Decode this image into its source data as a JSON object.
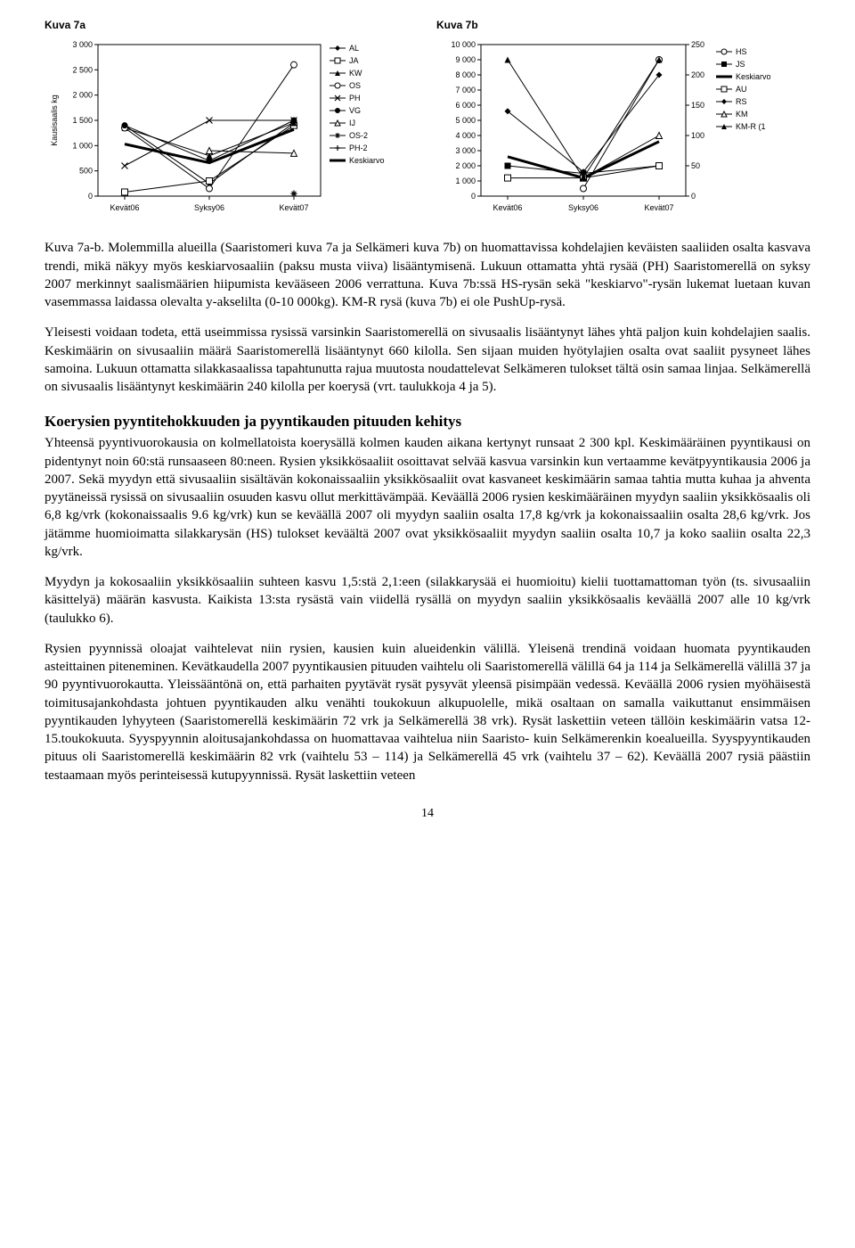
{
  "chart_a": {
    "title": "Kuva 7a",
    "type": "line",
    "x_categories": [
      "Kevät06",
      "Syksy06",
      "Kevät07"
    ],
    "ylabel": "Kausisaalis kg",
    "ylim": [
      0,
      3000
    ],
    "ytick_step": 500,
    "ytick_labels": [
      "0",
      "500",
      "1 000",
      "1 500",
      "2 000",
      "2 500",
      "3 000"
    ],
    "label_fontsize": 9,
    "background_color": "#ffffff",
    "axis_color": "#000000",
    "series": [
      {
        "name": "AL",
        "color": "#000000",
        "marker": "diamond-filled",
        "values": [
          1400,
          250,
          1450
        ]
      },
      {
        "name": "JA",
        "color": "#000000",
        "marker": "square-open",
        "values": [
          80,
          300,
          1400
        ]
      },
      {
        "name": "KW",
        "color": "#000000",
        "marker": "triangle-filled",
        "values": [
          1350,
          800,
          1450
        ]
      },
      {
        "name": "OS",
        "color": "#000000",
        "marker": "circle-open",
        "values": [
          1350,
          150,
          2600
        ]
      },
      {
        "name": "PH",
        "color": "#000000",
        "marker": "x",
        "values": [
          600,
          1500,
          1500
        ]
      },
      {
        "name": "VG",
        "color": "#000000",
        "marker": "circle-filled",
        "values": [
          1400,
          700,
          1500
        ]
      },
      {
        "name": "IJ",
        "color": "#000000",
        "marker": "triangle-open",
        "values": [
          null,
          900,
          850
        ]
      },
      {
        "name": "OS-2",
        "color": "#000000",
        "marker": "star",
        "values": [
          null,
          null,
          50
        ]
      },
      {
        "name": "PH-2",
        "color": "#000000",
        "marker": "plus",
        "values": [
          null,
          null,
          50
        ]
      },
      {
        "name": "Keskiarvo",
        "color": "#000000",
        "marker": "none",
        "line_width": 3,
        "values": [
          1030,
          660,
          1320
        ]
      }
    ]
  },
  "chart_b": {
    "title": "Kuva 7b",
    "type": "line-dual-axis",
    "x_categories": [
      "Kevät06",
      "Syksy06",
      "Kevät07"
    ],
    "ylim_left": [
      0,
      10000
    ],
    "ytick_step_left": 1000,
    "ytick_labels_left": [
      "0",
      "1 000",
      "2 000",
      "3 000",
      "4 000",
      "5 000",
      "6 000",
      "7 000",
      "8 000",
      "9 000",
      "10 000"
    ],
    "ylim_right": [
      0,
      250
    ],
    "ytick_step_right": 50,
    "ytick_labels_right": [
      "0",
      "50",
      "100",
      "150",
      "200",
      "250"
    ],
    "label_fontsize": 9,
    "background_color": "#ffffff",
    "axis_color": "#000000",
    "series": [
      {
        "name": "HS",
        "axis": "left",
        "color": "#000000",
        "marker": "circle-open",
        "values": [
          null,
          500,
          9000
        ]
      },
      {
        "name": "JS",
        "axis": "left",
        "color": "#000000",
        "marker": "square-filled",
        "values": [
          2000,
          1500,
          2000
        ]
      },
      {
        "name": "Keskiarvo",
        "axis": "left",
        "color": "#000000",
        "marker": "none",
        "line_width": 3,
        "values": [
          2600,
          1200,
          3600
        ]
      },
      {
        "name": "AU",
        "axis": "right",
        "color": "#000000",
        "marker": "square-open",
        "values": [
          30,
          30,
          50
        ]
      },
      {
        "name": "RS",
        "axis": "right",
        "color": "#000000",
        "marker": "diamond-filled",
        "values": [
          140,
          40,
          200
        ]
      },
      {
        "name": "KM",
        "axis": "right",
        "color": "#000000",
        "marker": "triangle-open",
        "values": [
          null,
          30,
          100
        ]
      },
      {
        "name": "KM-R (1",
        "axis": "right",
        "color": "#000000",
        "marker": "triangle-filled",
        "values": [
          225,
          30,
          225
        ]
      }
    ]
  },
  "caption": "Kuva 7a-b. Molemmilla alueilla (Saaristomeri kuva 7a ja Selkämeri kuva 7b) on huomattavissa kohdelajien keväisten saaliiden osalta kasvava trendi, mikä näkyy myös keskiarvosaaliin (paksu musta viiva) lisääntymisenä. Lukuun ottamatta yhtä rysää (PH) Saaristomerellä on syksy 2007 merkinnyt saalismäärien hiipumista kevääseen 2006 verrattuna. Kuva 7b:ssä HS-rysän sekä \"keskiarvo\"-rysän lukemat luetaan kuvan vasemmassa laidassa olevalta y-akselilta (0-10 000kg). KM-R rysä (kuva 7b) ei ole PushUp-rysä.",
  "para2": "Yleisesti voidaan todeta, että useimmissa rysissä varsinkin Saaristomerellä on sivusaalis lisääntynyt lähes yhtä paljon kuin kohdelajien saalis. Keskimäärin on sivusaaliin määrä Saaristomerellä lisääntynyt 660 kilolla. Sen sijaan muiden hyötylajien osalta ovat saaliit pysyneet lähes samoina. Lukuun ottamatta silakkasaalissa tapahtunutta rajua muutosta noudattelevat Selkämeren tulokset tältä osin samaa linjaa. Selkämerellä on sivusaalis lisääntynyt keskimäärin 240 kilolla per koerysä (vrt. taulukkoja 4 ja 5).",
  "section_title": "Koerysien pyyntitehokkuuden ja pyyntikauden pituuden kehitys",
  "para3": "Yhteensä pyyntivuorokausia on kolmellatoista koerysällä kolmen kauden aikana kertynyt runsaat 2 300 kpl. Keskimääräinen pyyntikausi on pidentynyt noin 60:stä runsaaseen 80:neen. Rysien yksikkösaaliit osoittavat selvää kasvua varsinkin kun vertaamme kevätpyyntikausia 2006 ja 2007. Sekä myydyn että sivusaaliin sisältävän kokonaissaaliin yksikkösaaliit ovat kasvaneet keskimäärin samaa tahtia mutta kuhaa ja ahventa pyytäneissä rysissä on sivusaaliin osuuden kasvu ollut merkittävämpää. Keväällä 2006 rysien keskimääräinen myydyn saaliin yksikkösaalis oli 6,8 kg/vrk (kokonaissaalis 9.6 kg/vrk) kun se keväällä 2007 oli myydyn saaliin osalta 17,8 kg/vrk ja kokonaissaaliin osalta 28,6 kg/vrk. Jos jätämme huomioimatta silakkarysän (HS) tulokset keväältä 2007 ovat yksikkösaaliit myydyn saaliin osalta 10,7 ja koko saaliin osalta 22,3 kg/vrk.",
  "para4": "Myydyn ja kokosaaliin yksikkösaaliin suhteen kasvu 1,5:stä 2,1:een (silakkarysää ei huomioitu) kielii tuottamattoman työn (ts. sivusaaliin käsittelyä) määrän kasvusta. Kaikista 13:sta rysästä vain viidellä rysällä on myydyn saaliin yksikkösaalis keväällä 2007 alle 10 kg/vrk (taulukko 6).",
  "para5": "Rysien pyynnissä oloajat vaihtelevat niin rysien, kausien kuin alueidenkin välillä. Yleisenä trendinä voidaan huomata pyyntikauden asteittainen piteneminen. Kevätkaudella 2007 pyyntikausien pituuden vaihtelu oli Saaristomerellä välillä 64 ja 114 ja Selkämerellä välillä 37 ja 90 pyyntivuorokautta. Yleissääntönä on, että parhaiten pyytävät rysät pysyvät yleensä pisimpään vedessä. Keväällä 2006 rysien myöhäisestä toimitusajankohdasta johtuen pyyntikauden alku venähti toukokuun alkupuolelle, mikä osaltaan on samalla vaikuttanut ensimmäisen pyyntikauden lyhyyteen (Saaristomerellä keskimäärin 72 vrk ja Selkämerellä 38 vrk). Rysät laskettiin veteen tällöin keskimäärin vatsa 12-15.toukokuuta. Syyspyynnin aloitusajankohdassa on huomattavaa vaihtelua niin Saaristo- kuin Selkämerenkin koealueilla. Syyspyyntikauden pituus oli Saaristomerellä keskimäärin 82 vrk (vaihtelu 53 – 114) ja Selkämerellä 45 vrk (vaihtelu 37 – 62). Keväällä 2007 rysiä päästiin testaamaan myös perinteisessä kutupyynnissä. Rysät laskettiin veteen",
  "page_number": "14"
}
